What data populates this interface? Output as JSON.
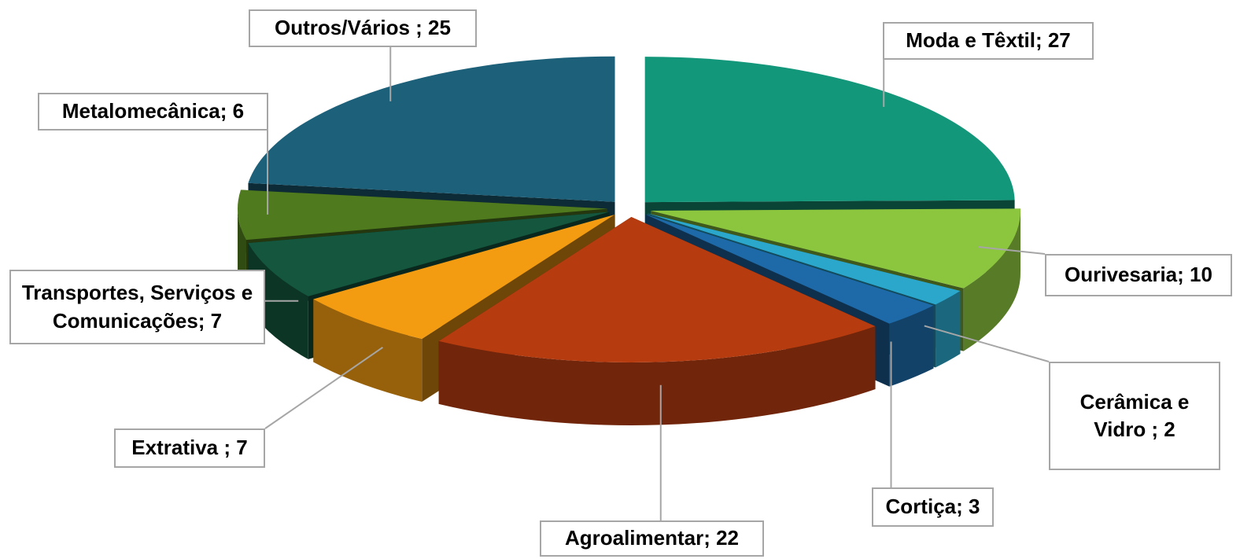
{
  "chart_data": {
    "type": "pie3d",
    "values": [
      27,
      10,
      2,
      3,
      22,
      7,
      7,
      6,
      25
    ],
    "value_labels": [
      "Moda e Têxtil; 27",
      "Ourivesaria; 10",
      "Cerâmica e Vidro ; 2",
      "Cortiça; 3",
      "Agroalimentar; 22",
      "Extrativa ; 7",
      "Transportes, Serviços e Comunicações; 7",
      "Metalomecânica; 6",
      "Outros/Vários ; 25"
    ],
    "colors": [
      "#13977a",
      "#8cc63f",
      "#2ba7cc",
      "#1e6aa8",
      "#b63c10",
      "#f39c12",
      "#14563e",
      "#4f7a1e",
      "#1c6079"
    ]
  }
}
